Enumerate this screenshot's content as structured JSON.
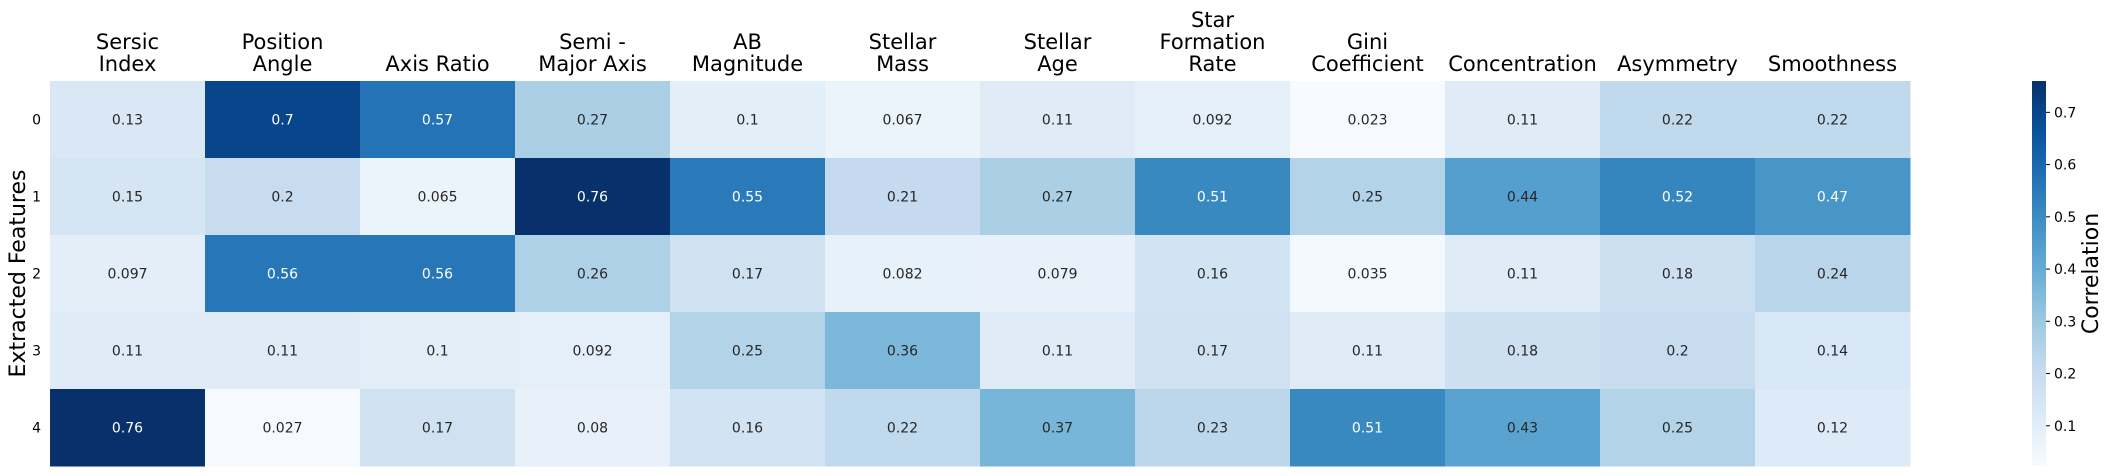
{
  "chart_data": {
    "type": "heatmap",
    "title": "",
    "columns": [
      [
        "Sersic",
        "Index"
      ],
      [
        "Position",
        "Angle"
      ],
      [
        "Axis Ratio"
      ],
      [
        "Semi -",
        "Major Axis"
      ],
      [
        "AB",
        "Magnitude"
      ],
      [
        "Stellar",
        "Mass"
      ],
      [
        "Stellar",
        "Age"
      ],
      [
        "Star",
        "Formation",
        "Rate"
      ],
      [
        "Gini",
        "Coefficient"
      ],
      [
        "Concentration"
      ],
      [
        "Asymmetry"
      ],
      [
        "Smoothness"
      ]
    ],
    "rows": [
      "0",
      "1",
      "2",
      "3",
      "4"
    ],
    "ylabel": "Extracted Features",
    "colorbar_label": "Correlation",
    "colorbar_ticks": [
      "0.1",
      "0.2",
      "0.3",
      "0.4",
      "0.5",
      "0.6",
      "0.7"
    ],
    "colormap": "Blues",
    "vmin": 0.023,
    "vmax": 0.76,
    "values": [
      [
        0.13,
        0.7,
        0.57,
        0.27,
        0.1,
        0.067,
        0.11,
        0.092,
        0.023,
        0.11,
        0.22,
        0.22
      ],
      [
        0.15,
        0.2,
        0.065,
        0.76,
        0.55,
        0.21,
        0.27,
        0.51,
        0.25,
        0.44,
        0.52,
        0.47
      ],
      [
        0.097,
        0.56,
        0.56,
        0.26,
        0.17,
        0.082,
        0.079,
        0.16,
        0.035,
        0.11,
        0.18,
        0.24
      ],
      [
        0.11,
        0.11,
        0.1,
        0.092,
        0.25,
        0.36,
        0.11,
        0.17,
        0.11,
        0.18,
        0.2,
        0.14
      ],
      [
        0.76,
        0.027,
        0.17,
        0.08,
        0.16,
        0.22,
        0.37,
        0.23,
        0.51,
        0.43,
        0.25,
        0.12
      ]
    ],
    "cell_labels": [
      [
        "0.13",
        "0.7",
        "0.57",
        "0.27",
        "0.1",
        "0.067",
        "0.11",
        "0.092",
        "0.023",
        "0.11",
        "0.22",
        "0.22"
      ],
      [
        "0.15",
        "0.2",
        "0.065",
        "0.76",
        "0.55",
        "0.21",
        "0.27",
        "0.51",
        "0.25",
        "0.44",
        "0.52",
        "0.47"
      ],
      [
        "0.097",
        "0.56",
        "0.56",
        "0.26",
        "0.17",
        "0.082",
        "0.079",
        "0.16",
        "0.035",
        "0.11",
        "0.18",
        "0.24"
      ],
      [
        "0.11",
        "0.11",
        "0.1",
        "0.092",
        "0.25",
        "0.36",
        "0.11",
        "0.17",
        "0.11",
        "0.18",
        "0.2",
        "0.14"
      ],
      [
        "0.76",
        "0.027",
        "0.17",
        "0.08",
        "0.16",
        "0.22",
        "0.37",
        "0.23",
        "0.51",
        "0.43",
        "0.25",
        "0.12"
      ]
    ]
  }
}
